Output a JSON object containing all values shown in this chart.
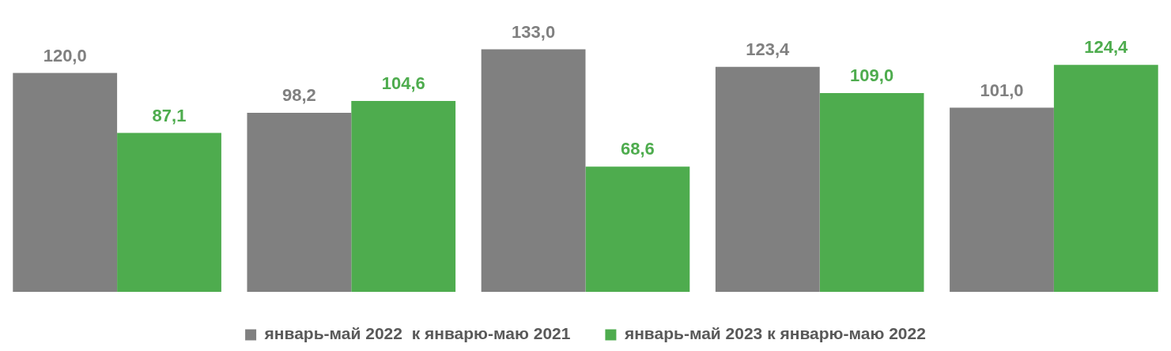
{
  "chart_data": {
    "type": "bar",
    "categories": [
      null,
      null,
      null,
      null,
      null
    ],
    "grid": false,
    "legend": "bottom",
    "series": [
      {
        "name": "январь-май 2022  к январю-маю 2021",
        "color": "#808080",
        "values": [
          120.0,
          98.2,
          133.0,
          123.4,
          101.0
        ],
        "value_labels": [
          "120,0",
          "98,2",
          "133,0",
          "123,4",
          "101,0"
        ]
      },
      {
        "name": "январь-май 2023 к январю-маю 2022",
        "color": "#4eac4e",
        "values": [
          87.1,
          104.6,
          68.6,
          109.0,
          124.4
        ],
        "value_labels": [
          "87,1",
          "104,6",
          "68,6",
          "109,0",
          "124,4"
        ]
      }
    ]
  }
}
